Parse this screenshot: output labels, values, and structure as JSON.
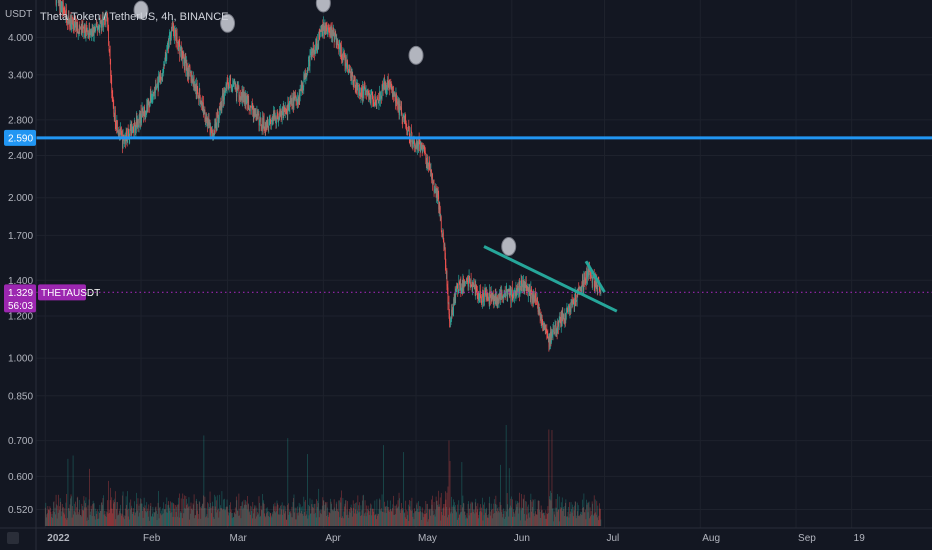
{
  "chart_data": {
    "type": "candlestick",
    "title": "Theta Token / TetherUS, 4h, BINANCE",
    "symbol": "THETAUSDT",
    "currency_label": "USDT",
    "y_scale": "log",
    "ylim": [
      0.48,
      4.7
    ],
    "y_ticks": [
      "4.000",
      "3.400",
      "2.800",
      "2.400",
      "2.000",
      "1.700",
      "1.400",
      "1.200",
      "1.000",
      "0.850",
      "0.700",
      "0.600",
      "0.520"
    ],
    "y_tick_values": [
      4.0,
      3.4,
      2.8,
      2.4,
      2.0,
      1.7,
      1.4,
      1.2,
      1.0,
      0.85,
      0.7,
      0.6,
      0.52
    ],
    "x_ticks": [
      "2022",
      "Feb",
      "Mar",
      "Apr",
      "May",
      "Jun",
      "Jul",
      "Aug",
      "Sep",
      "19"
    ],
    "x_tick_dates": [
      "2022-01-01",
      "2022-02-01",
      "2022-03-01",
      "2022-04-01",
      "2022-05-01",
      "2022-06-01",
      "2022-07-01",
      "2022-08-01",
      "2022-09-01",
      "2022-09-19"
    ],
    "xlim": [
      "2021-12-29",
      "2022-10-15"
    ],
    "last_price": {
      "value": 1.329,
      "label": "1.329",
      "countdown": "56:03",
      "color": "#9c27b0"
    },
    "horizontal_line": {
      "value": 2.59,
      "label": "2.590",
      "color": "#2196f3"
    },
    "trendline": {
      "start": {
        "date": "2022-05-23",
        "value": 1.62
      },
      "end": {
        "date": "2022-07-05",
        "value": 1.225
      },
      "color": "#26a69a"
    },
    "arrow_mark": {
      "points": [
        {
          "date": "2022-06-25",
          "value": 1.52
        },
        {
          "date": "2022-07-01",
          "value": 1.33
        }
      ],
      "color": "#26a69a"
    },
    "price_path": [
      {
        "date": "2022-01-01",
        "value": 5.1
      },
      {
        "date": "2022-01-06",
        "value": 4.6
      },
      {
        "date": "2022-01-10",
        "value": 4.2
      },
      {
        "date": "2022-01-16",
        "value": 4.05
      },
      {
        "date": "2022-01-21",
        "value": 4.4
      },
      {
        "date": "2022-01-23",
        "value": 2.9
      },
      {
        "date": "2022-01-26",
        "value": 2.55
      },
      {
        "date": "2022-02-02",
        "value": 2.9
      },
      {
        "date": "2022-02-08",
        "value": 3.4
      },
      {
        "date": "2022-02-11",
        "value": 4.2
      },
      {
        "date": "2022-02-15",
        "value": 3.6
      },
      {
        "date": "2022-02-20",
        "value": 3.1
      },
      {
        "date": "2022-02-24",
        "value": 2.6
      },
      {
        "date": "2022-03-01",
        "value": 3.3
      },
      {
        "date": "2022-03-06",
        "value": 3.1
      },
      {
        "date": "2022-03-12",
        "value": 2.75
      },
      {
        "date": "2022-03-18",
        "value": 2.85
      },
      {
        "date": "2022-03-24",
        "value": 3.1
      },
      {
        "date": "2022-03-28",
        "value": 3.7
      },
      {
        "date": "2022-04-01",
        "value": 4.15
      },
      {
        "date": "2022-04-04",
        "value": 4.1
      },
      {
        "date": "2022-04-08",
        "value": 3.6
      },
      {
        "date": "2022-04-12",
        "value": 3.2
      },
      {
        "date": "2022-04-18",
        "value": 3.05
      },
      {
        "date": "2022-04-22",
        "value": 3.3
      },
      {
        "date": "2022-04-26",
        "value": 2.9
      },
      {
        "date": "2022-04-30",
        "value": 2.55
      },
      {
        "date": "2022-05-03",
        "value": 2.5
      },
      {
        "date": "2022-05-05",
        "value": 2.3
      },
      {
        "date": "2022-05-08",
        "value": 2.0
      },
      {
        "date": "2022-05-10",
        "value": 1.65
      },
      {
        "date": "2022-05-12",
        "value": 1.15
      },
      {
        "date": "2022-05-14",
        "value": 1.35
      },
      {
        "date": "2022-05-18",
        "value": 1.4
      },
      {
        "date": "2022-05-22",
        "value": 1.3
      },
      {
        "date": "2022-05-27",
        "value": 1.3
      },
      {
        "date": "2022-06-01",
        "value": 1.32
      },
      {
        "date": "2022-06-05",
        "value": 1.38
      },
      {
        "date": "2022-06-09",
        "value": 1.28
      },
      {
        "date": "2022-06-13",
        "value": 1.08
      },
      {
        "date": "2022-06-18",
        "value": 1.2
      },
      {
        "date": "2022-06-22",
        "value": 1.3
      },
      {
        "date": "2022-06-26",
        "value": 1.45
      },
      {
        "date": "2022-06-28",
        "value": 1.38
      },
      {
        "date": "2022-06-30",
        "value": 1.33
      }
    ],
    "volume_note": "volume histogram at bottom, green and red bars",
    "colors": {
      "up": "#26a69a",
      "down": "#ef5350",
      "background": "#131722",
      "grid": "#1e222d",
      "marker": "#b2b5be"
    }
  }
}
